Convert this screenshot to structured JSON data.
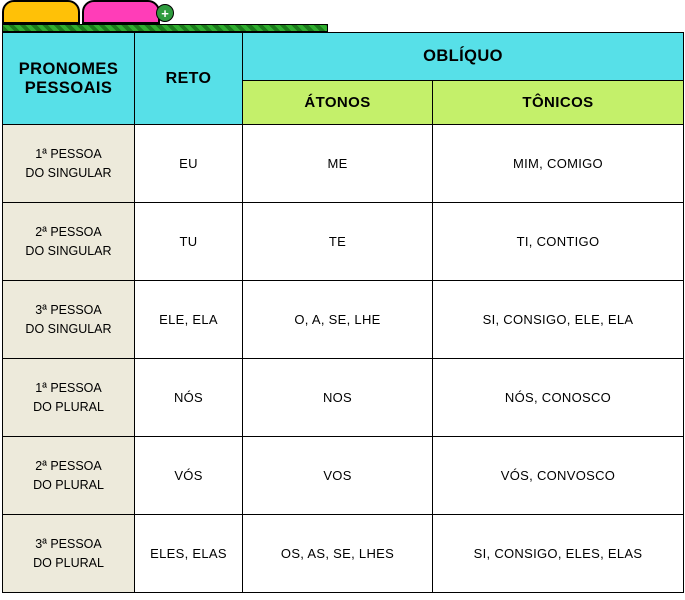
{
  "tabs": {
    "add_glyph": "+"
  },
  "header": {
    "col1": "PRONOMES PESSOAIS",
    "col2": "RETO",
    "obliquo": "OBLÍQUO",
    "atonos": "ÁTONOS",
    "tonicos": "TÔNICOS"
  },
  "rows": [
    {
      "label_l1": "1ª PESSOA",
      "label_l2": "DO SINGULAR",
      "reto": "EU",
      "atonos": "ME",
      "tonicos": "MIM, COMIGO"
    },
    {
      "label_l1": "2ª PESSOA",
      "label_l2": "DO SINGULAR",
      "reto": "TU",
      "atonos": "TE",
      "tonicos": "TI, CONTIGO"
    },
    {
      "label_l1": "3ª PESSOA",
      "label_l2": "DO SINGULAR",
      "reto": "ELE, ELA",
      "atonos": "O, A, SE, LHE",
      "tonicos": "SI, CONSIGO, ELE, ELA"
    },
    {
      "label_l1": "1ª PESSOA",
      "label_l2": "DO PLURAL",
      "reto": "NÓS",
      "atonos": "NOS",
      "tonicos": "NÓS, CONOSCO"
    },
    {
      "label_l1": "2ª PESSOA",
      "label_l2": "DO PLURAL",
      "reto": "VÓS",
      "atonos": "VOS",
      "tonicos": "VÓS, CONVOSCO"
    },
    {
      "label_l1": "3ª PESSOA",
      "label_l2": "DO PLURAL",
      "reto": "ELES, ELAS",
      "atonos": "OS, AS, SE, LHES",
      "tonicos": "SI, CONSIGO, ELES, ELAS"
    }
  ],
  "colors": {
    "cyan": "#57e0e8",
    "lime": "#c4f06a",
    "beige": "#edeadb",
    "yellow_tab": "#ffc107",
    "pink_tab": "#ff3db8",
    "green_add": "#2e9b3e",
    "border": "#000000",
    "white": "#ffffff"
  }
}
